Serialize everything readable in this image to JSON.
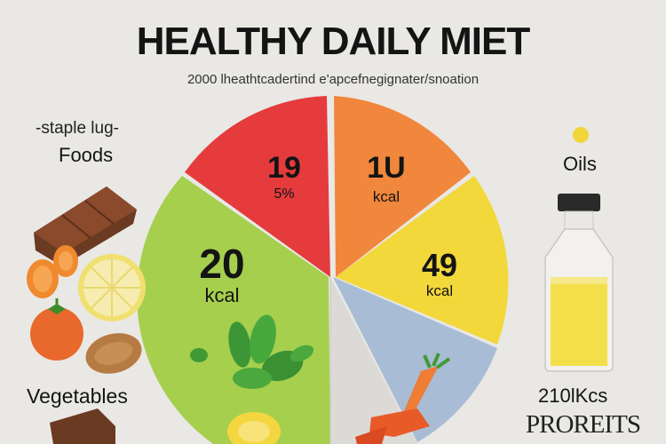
{
  "header": {
    "title": "HEALTHY DAILY MIET",
    "subtitle": "2000 lheathtcadertind e'apcefnegignater/snoation"
  },
  "pie": {
    "segments": [
      {
        "key": "red",
        "color": "#e53b3d",
        "value": "19",
        "unit": "5%"
      },
      {
        "key": "orange",
        "color": "#f0873c",
        "value": "1U",
        "unit": "kcal"
      },
      {
        "key": "yellow",
        "color": "#f2d83a",
        "value": "49",
        "unit": "kcal"
      },
      {
        "key": "blue",
        "color": "#a9bcd6"
      },
      {
        "key": "gray",
        "color": "#dcdad6"
      },
      {
        "key": "green",
        "color": "#a6cf4e",
        "value": "20",
        "unit": "kcal"
      }
    ]
  },
  "labels": {
    "staple_top": "-staple lug-",
    "staple_foods": "Foods",
    "vegetables": "Vegetables",
    "oils": "Oils",
    "oils_kcal": "210lKcs",
    "proteins": "PROREITS"
  },
  "icons": {
    "chocolate": "chocolate-bar-icon",
    "orange_slice": "orange-slice-icon",
    "lemon": "lemon-slice-icon",
    "tomato": "tomato-icon",
    "almond": "almond-icon",
    "leaves": "leafy-greens-icon",
    "carrot": "carrot-icon",
    "oil_bottle": "oil-bottle-icon",
    "oil_drop": "oil-drop-icon"
  }
}
